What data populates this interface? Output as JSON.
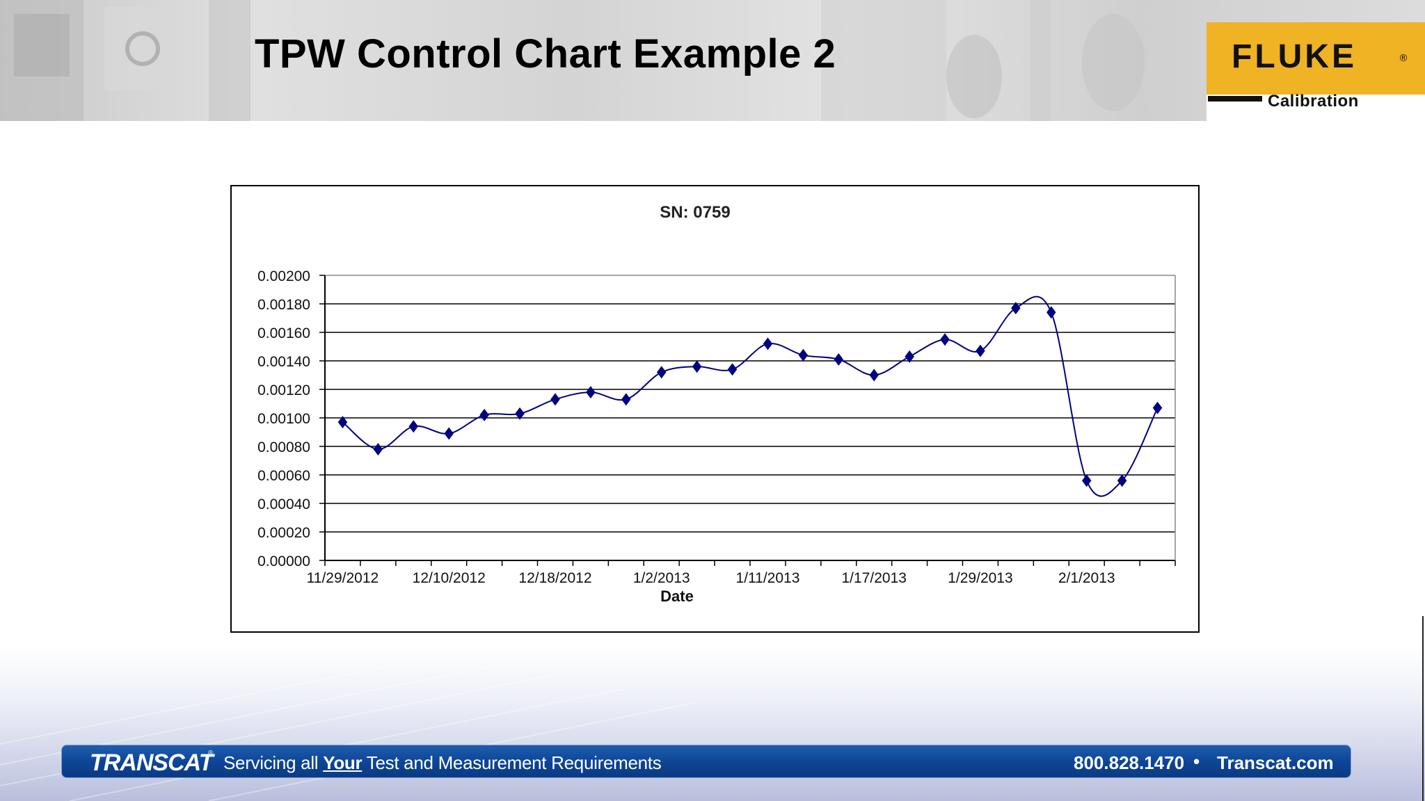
{
  "slide": {
    "title": "TPW Control Chart Example 2"
  },
  "logo": {
    "word": "FLUKE",
    "registered": "®",
    "sub": "Calibration",
    "color": "#f0b323"
  },
  "footer": {
    "brand": "TRANSCAT",
    "brand_mark": "®",
    "tagline_pre": "Servicing all ",
    "tagline_em": "Your",
    "tagline_post": " Test and Measurement Requirements",
    "phone": "800.828.1470",
    "separator": "•",
    "website": "Transcat.com",
    "bar_color": "#0d4495"
  },
  "chart_data": {
    "type": "line",
    "title": "SN: 0759",
    "xlabel": "Date",
    "ylabel": "",
    "ylim": [
      0,
      0.002
    ],
    "y_ticks": [
      "0.00200",
      "0.00180",
      "0.00160",
      "0.00140",
      "0.00120",
      "0.00100",
      "0.00080",
      "0.00060",
      "0.00040",
      "0.00020",
      "0.00000"
    ],
    "x_tick_labels": [
      "11/29/2012",
      "12/10/2012",
      "12/18/2012",
      "1/2/2013",
      "1/11/2013",
      "1/17/2013",
      "1/29/2013",
      "2/1/2013"
    ],
    "grid": true,
    "series": [
      {
        "color": "#000080",
        "marker": "diamond",
        "smooth": true,
        "values": [
          0.00097,
          0.00078,
          0.00094,
          0.00089,
          0.00102,
          0.00103,
          0.00113,
          0.00118,
          0.00113,
          0.00132,
          0.00136,
          0.00134,
          0.00152,
          0.00144,
          0.00141,
          0.0013,
          0.00143,
          0.00155,
          0.00147,
          0.00177,
          0.00174,
          0.00056,
          0.00056,
          0.00107
        ]
      }
    ]
  }
}
